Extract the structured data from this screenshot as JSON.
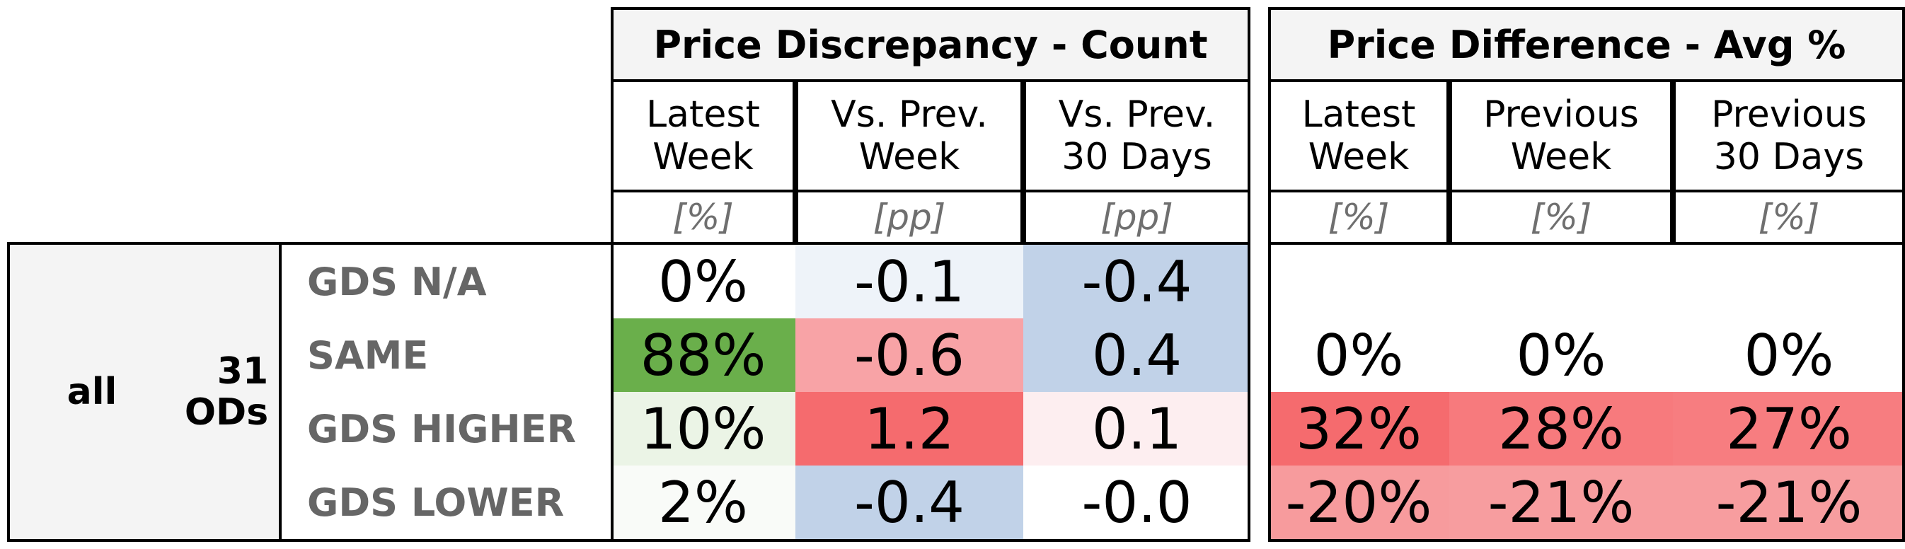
{
  "chart_data": {
    "type": "table",
    "group": {
      "segment": "all",
      "count_label": "31\nODs"
    },
    "row_labels": [
      "GDS N/A",
      "SAME",
      "GDS HIGHER",
      "GDS LOWER"
    ],
    "sections": [
      {
        "title": "Price Discrepancy - Count",
        "columns": [
          {
            "header": "Latest\nWeek",
            "unit": "[%]",
            "values": [
              "0%",
              "88%",
              "10%",
              "2%"
            ],
            "fills": [
              "#ffffff",
              "#6aaf4b",
              "#ebf4e6",
              "#f9fbf8"
            ]
          },
          {
            "header": "Vs. Prev.\nWeek",
            "unit": "[pp]",
            "values": [
              "-0.1",
              "-0.6",
              "1.2",
              "-0.4"
            ],
            "fills": [
              "#eef3f9",
              "#f8a3a6",
              "#f56b6e",
              "#c1d2e8"
            ]
          },
          {
            "header": "Vs. Prev.\n30 Days",
            "unit": "[pp]",
            "values": [
              "-0.4",
              "0.4",
              "0.1",
              "-0.0"
            ],
            "fills": [
              "#c1d2e8",
              "#c1d2e8",
              "#fdeef0",
              "#ffffff"
            ]
          }
        ]
      },
      {
        "title": "Price Difference - Avg %",
        "columns": [
          {
            "header": "Latest\nWeek",
            "unit": "[%]",
            "values": [
              "",
              "0%",
              "32%",
              "-20%"
            ],
            "fills": [
              "#ffffff",
              "#ffffff",
              "#f56b6e",
              "#f79b9d"
            ]
          },
          {
            "header": "Previous\nWeek",
            "unit": "[%]",
            "values": [
              "",
              "0%",
              "28%",
              "-21%"
            ],
            "fills": [
              "#ffffff",
              "#ffffff",
              "#f77a7d",
              "#f79d9f"
            ]
          },
          {
            "header": "Previous\n30 Days",
            "unit": "[%]",
            "values": [
              "",
              "0%",
              "27%",
              "-21%"
            ],
            "fills": [
              "#ffffff",
              "#ffffff",
              "#f77d80",
              "#f79d9f"
            ]
          }
        ]
      }
    ]
  }
}
